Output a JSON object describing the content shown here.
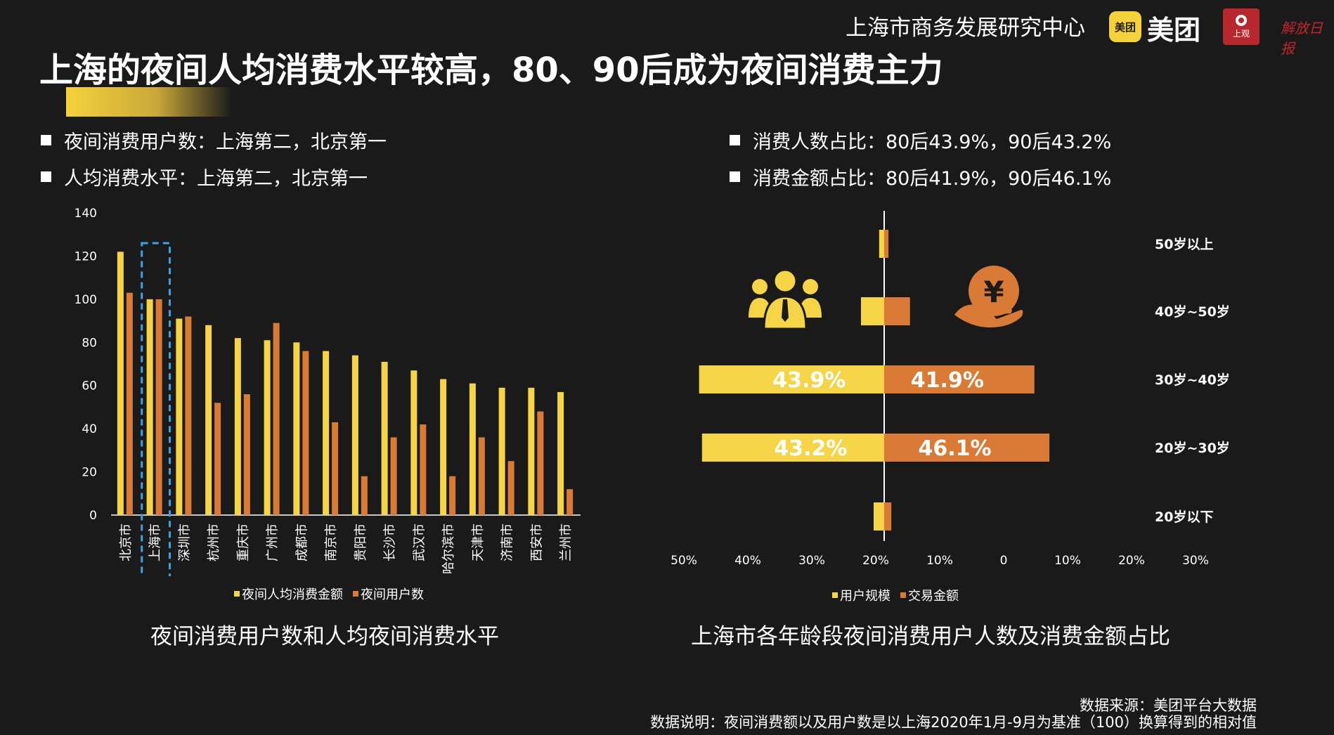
{
  "header": {
    "org_name": "上海市商务发展研究中心",
    "meituan_badge": "美团",
    "meituan_word": "美团",
    "shangguan_label": "上观",
    "jiefang_label": "解放日报"
  },
  "title": "上海的夜间人均消费水平较高，80、90后成为夜间消费主力",
  "bullets_left": [
    "夜间消费用户数：上海第二，北京第一",
    "人均消费水平：上海第二，北京第一"
  ],
  "bullets_right": [
    "消费人数占比：80后43.9%，90后43.2%",
    "消费金额占比：80后41.9%，90后46.1%"
  ],
  "colors": {
    "yellow": "#f5d547",
    "orange": "#d97b36",
    "highlight_box": "#3aa3e3",
    "background": "#1a1a1a"
  },
  "left_chart_title": "夜间消费用户数和人均夜间消费水平",
  "right_chart_title": "上海市各年龄段夜间消费用户人数及消费金额占比",
  "footer": {
    "source": "数据来源：美团平台大数据",
    "note": "数据说明：夜间消费额以及用户数是以上海2020年1月-9月为基准（100）换算得到的相对值"
  },
  "chart_data": [
    {
      "type": "bar",
      "title": "夜间消费用户数和人均夜间消费水平",
      "categories": [
        "北京市",
        "上海市",
        "深圳市",
        "杭州市",
        "重庆市",
        "广州市",
        "成都市",
        "南京市",
        "贵阳市",
        "长沙市",
        "武汉市",
        "哈尔滨市",
        "天津市",
        "济南市",
        "西安市",
        "兰州市"
      ],
      "series": [
        {
          "name": "夜间人均消费金额",
          "color": "#f5d547",
          "values": [
            122,
            100,
            91,
            88,
            82,
            81,
            80,
            76,
            74,
            71,
            67,
            63,
            61,
            59,
            59,
            57
          ]
        },
        {
          "name": "夜间用户数",
          "color": "#d97b36",
          "values": [
            103,
            100,
            92,
            52,
            56,
            89,
            76,
            43,
            18,
            36,
            42,
            18,
            36,
            25,
            48,
            12
          ]
        }
      ],
      "y_ticks": [
        0,
        20,
        40,
        60,
        80,
        100,
        120,
        140
      ],
      "ylim": [
        0,
        140
      ],
      "highlight_category": "上海市",
      "legend_position": "bottom"
    },
    {
      "type": "bar",
      "orientation": "horizontal-diverging",
      "title": "上海市各年龄段夜间消费用户人数及消费金额占比",
      "categories": [
        "50岁以上",
        "40岁~50岁",
        "30岁~40岁",
        "20岁~30岁",
        "20岁以下"
      ],
      "series": [
        {
          "name": "用户规模",
          "color": "#f5d547",
          "side": "left",
          "values": [
            1.2,
            5.5,
            43.9,
            43.2,
            2.5
          ],
          "labels": [
            "",
            "",
            "43.9%",
            "43.2%",
            ""
          ]
        },
        {
          "name": "交易金额",
          "color": "#d97b36",
          "side": "right",
          "values": [
            1.2,
            7.2,
            41.9,
            46.1,
            2.0
          ],
          "labels": [
            "",
            "",
            "41.9%",
            "46.1%",
            ""
          ]
        }
      ],
      "x_tick_labels": [
        "50%",
        "40%",
        "30%",
        "20%",
        "10%",
        "0",
        "10%",
        "20%",
        "30%"
      ],
      "legend_position": "bottom"
    }
  ]
}
